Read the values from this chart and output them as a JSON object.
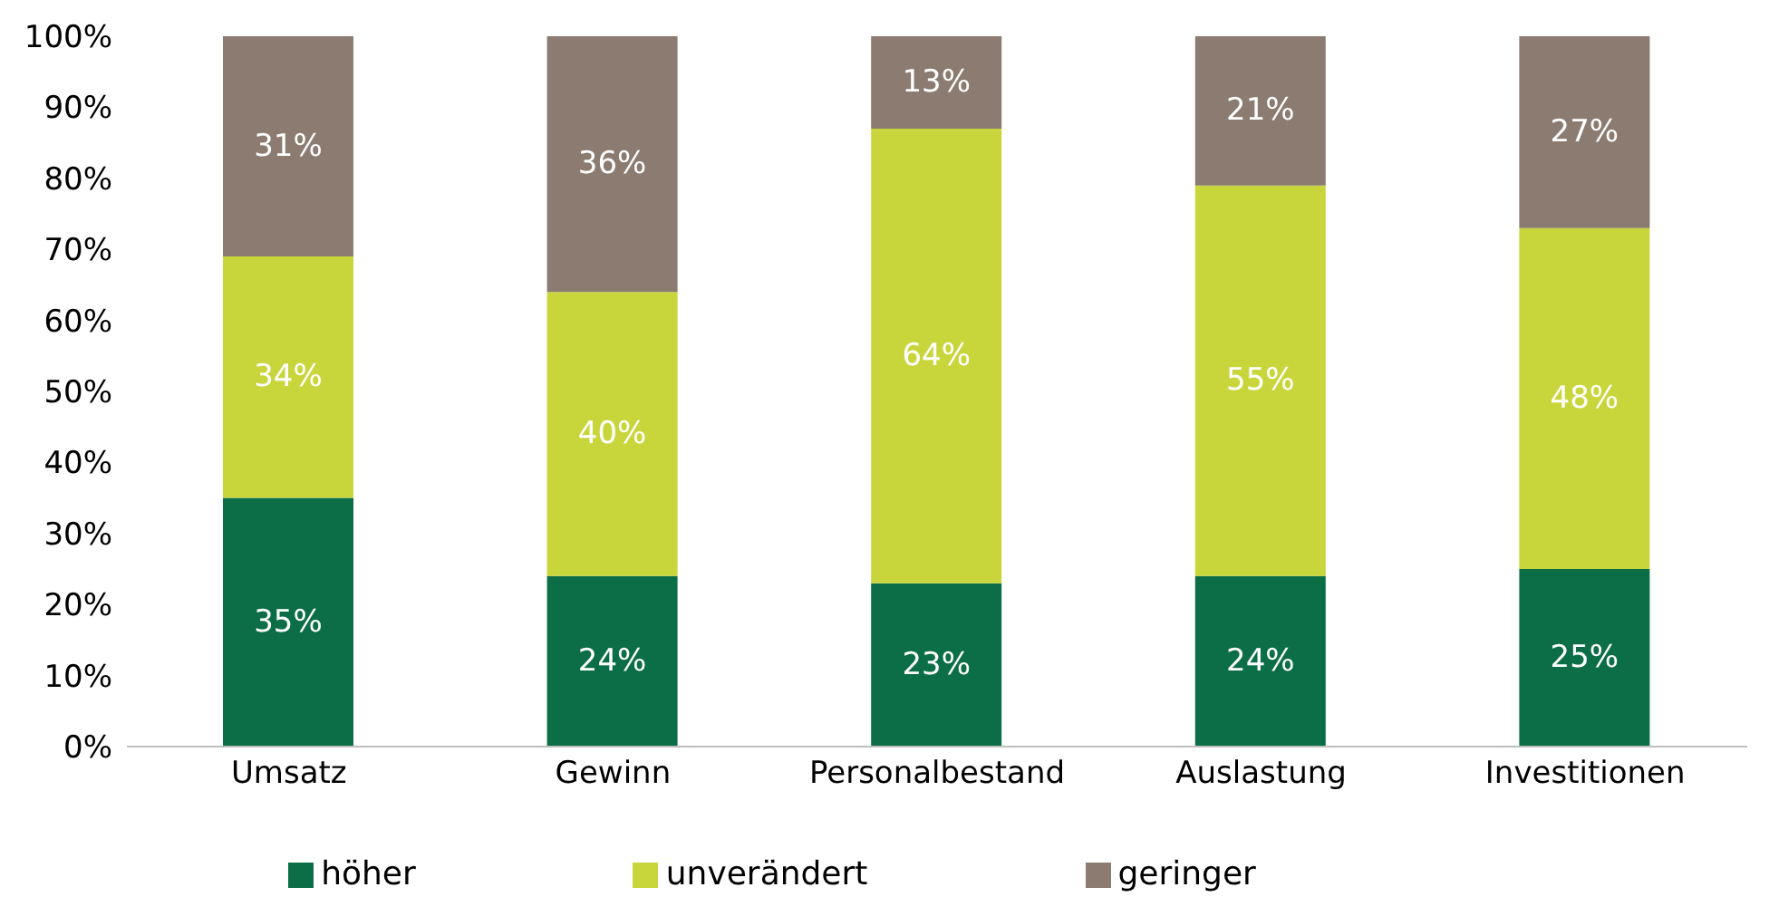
{
  "chart_data": {
    "type": "bar",
    "stacked": true,
    "categories": [
      "Umsatz",
      "Gewinn",
      "Personalbestand",
      "Auslastung",
      "Investitionen"
    ],
    "series": [
      {
        "name": "höher",
        "color": "#0b6e46",
        "values": [
          35,
          24,
          23,
          24,
          25
        ],
        "value_labels": [
          "35%",
          "24%",
          "23%",
          "24%",
          "25%"
        ]
      },
      {
        "name": "unverändert",
        "color": "#c8d63c",
        "values": [
          34,
          40,
          64,
          55,
          48
        ],
        "value_labels": [
          "34%",
          "40%",
          "64%",
          "55%",
          "48%"
        ]
      },
      {
        "name": "geringer",
        "color": "#8b7b70",
        "values": [
          31,
          36,
          13,
          21,
          27
        ],
        "value_labels": [
          "31%",
          "36%",
          "13%",
          "21%",
          "27%"
        ]
      }
    ],
    "ylim": [
      0,
      100
    ],
    "yticks": [
      {
        "value": 0,
        "label": "0%"
      },
      {
        "value": 10,
        "label": "10%"
      },
      {
        "value": 20,
        "label": "20%"
      },
      {
        "value": 30,
        "label": "30%"
      },
      {
        "value": 40,
        "label": "40%"
      },
      {
        "value": 50,
        "label": "50%"
      },
      {
        "value": 60,
        "label": "60%"
      },
      {
        "value": 70,
        "label": "70%"
      },
      {
        "value": 80,
        "label": "80%"
      },
      {
        "value": 90,
        "label": "90%"
      },
      {
        "value": 100,
        "label": "100%"
      }
    ],
    "grid": false,
    "legend": "bottom"
  }
}
